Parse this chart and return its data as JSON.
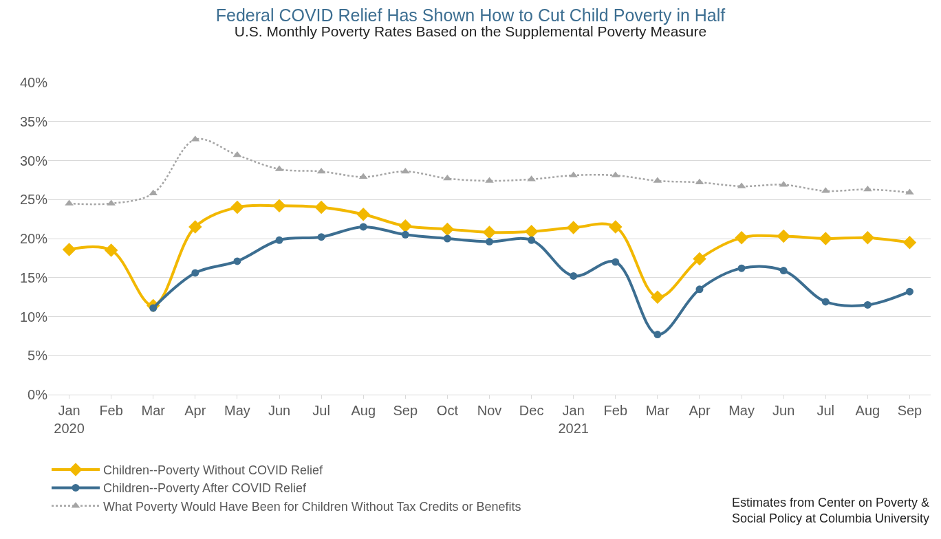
{
  "chart_data": {
    "type": "line",
    "title": "Federal COVID Relief Has Shown How to Cut Child Poverty in Half",
    "subtitle": "U.S. Monthly Poverty Rates Based on the Supplemental Poverty Measure",
    "categories": [
      "Jan\n2020",
      "Feb",
      "Mar",
      "Apr",
      "May",
      "Jun",
      "Jul",
      "Aug",
      "Sep",
      "Oct",
      "Nov",
      "Dec",
      "Jan\n2021",
      "Feb",
      "Mar",
      "Apr",
      "May",
      "Jun",
      "Jul",
      "Aug",
      "Sep"
    ],
    "series": [
      {
        "name": "Children--Poverty Without COVID Relief",
        "color": "#f2b800",
        "marker": "diamond",
        "line_style": "solid",
        "values": [
          18.6,
          18.5,
          11.4,
          21.5,
          24.0,
          24.2,
          24.0,
          23.1,
          21.6,
          21.2,
          20.8,
          20.9,
          21.4,
          21.5,
          12.5,
          17.4,
          20.1,
          20.3,
          20.0,
          20.1,
          19.5
        ]
      },
      {
        "name": "Children--Poverty After COVID Relief",
        "color": "#3c6e91",
        "marker": "circle",
        "line_style": "solid",
        "values": [
          null,
          null,
          11.1,
          15.6,
          17.1,
          19.8,
          20.2,
          21.5,
          20.5,
          20.0,
          19.6,
          19.8,
          15.2,
          17.0,
          7.7,
          13.5,
          16.2,
          15.9,
          11.9,
          11.5,
          13.2
        ]
      },
      {
        "name": "What Poverty Would Have Been for Children Without Tax Credits or Benefits",
        "color": "#a5a5a5",
        "marker": "triangle",
        "line_style": "dotted",
        "values": [
          24.5,
          24.5,
          25.8,
          32.7,
          30.7,
          28.9,
          28.6,
          27.9,
          28.6,
          27.7,
          27.4,
          27.6,
          28.1,
          28.1,
          27.4,
          27.2,
          26.7,
          26.9,
          26.1,
          26.3,
          25.9
        ]
      }
    ],
    "ylim": [
      0,
      40
    ],
    "yticks": [
      {
        "value": 0,
        "label": "0%"
      },
      {
        "value": 5,
        "label": "5%"
      },
      {
        "value": 10,
        "label": "10%"
      },
      {
        "value": 15,
        "label": "15%"
      },
      {
        "value": 20,
        "label": "20%"
      },
      {
        "value": 25,
        "label": "25%"
      },
      {
        "value": 30,
        "label": "30%"
      },
      {
        "value": 35,
        "label": "35%"
      },
      {
        "value": 40,
        "label": "40%"
      }
    ],
    "grid": "y",
    "legend": "bottom",
    "annotations": [
      "Estimates from Center on Poverty &\nSocial Policy at Columbia University"
    ]
  }
}
